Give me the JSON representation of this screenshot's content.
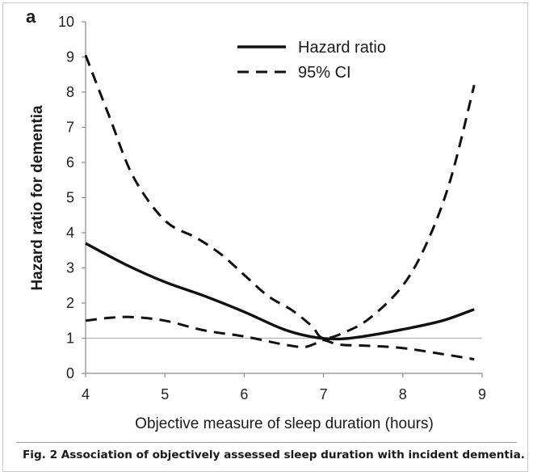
{
  "panel_letter": "a",
  "caption": "Fig. 2 Association of objectively assessed sleep duration with incident dementia.",
  "chart_data": {
    "type": "line",
    "xlabel": "Objective measure of sleep duration (hours)",
    "ylabel": "Hazard ratio for dementia",
    "xlim": [
      4,
      9
    ],
    "ylim": [
      0,
      10
    ],
    "xticks": [
      4,
      5,
      6,
      7,
      8,
      9
    ],
    "yticks": [
      0,
      1,
      2,
      3,
      4,
      5,
      6,
      7,
      8,
      9,
      10
    ],
    "reference_line": 1,
    "legend_position": "top-right",
    "series": [
      {
        "name": "Hazard ratio",
        "style": "solid",
        "color": "#111111",
        "points": [
          [
            4.0,
            3.7
          ],
          [
            4.5,
            3.1
          ],
          [
            5.0,
            2.6
          ],
          [
            5.5,
            2.2
          ],
          [
            6.0,
            1.75
          ],
          [
            6.5,
            1.25
          ],
          [
            6.9,
            1.02
          ],
          [
            7.2,
            0.98
          ],
          [
            7.5,
            1.05
          ],
          [
            8.0,
            1.25
          ],
          [
            8.5,
            1.5
          ],
          [
            8.9,
            1.82
          ]
        ]
      },
      {
        "name": "95% CI",
        "style": "dashed",
        "color": "#111111",
        "points": [
          [
            4.0,
            9.05
          ],
          [
            4.3,
            7.3
          ],
          [
            4.6,
            5.6
          ],
          [
            5.0,
            4.35
          ],
          [
            5.4,
            3.85
          ],
          [
            5.7,
            3.4
          ],
          [
            6.0,
            2.8
          ],
          [
            6.3,
            2.2
          ],
          [
            6.6,
            1.8
          ],
          [
            6.85,
            1.35
          ],
          [
            7.0,
            1.0
          ],
          [
            7.3,
            1.2
          ],
          [
            7.6,
            1.6
          ],
          [
            8.0,
            2.5
          ],
          [
            8.3,
            3.7
          ],
          [
            8.6,
            5.5
          ],
          [
            8.9,
            8.2
          ]
        ]
      },
      {
        "name": "95% CI",
        "style": "dashed",
        "color": "#111111",
        "points": [
          [
            4.0,
            1.5
          ],
          [
            4.3,
            1.58
          ],
          [
            4.6,
            1.6
          ],
          [
            5.0,
            1.5
          ],
          [
            5.5,
            1.22
          ],
          [
            6.0,
            1.05
          ],
          [
            6.5,
            0.82
          ],
          [
            6.75,
            0.75
          ],
          [
            6.9,
            0.85
          ],
          [
            7.0,
            0.95
          ],
          [
            7.2,
            0.82
          ],
          [
            7.6,
            0.78
          ],
          [
            8.0,
            0.72
          ],
          [
            8.5,
            0.55
          ],
          [
            8.9,
            0.4
          ]
        ]
      }
    ]
  }
}
